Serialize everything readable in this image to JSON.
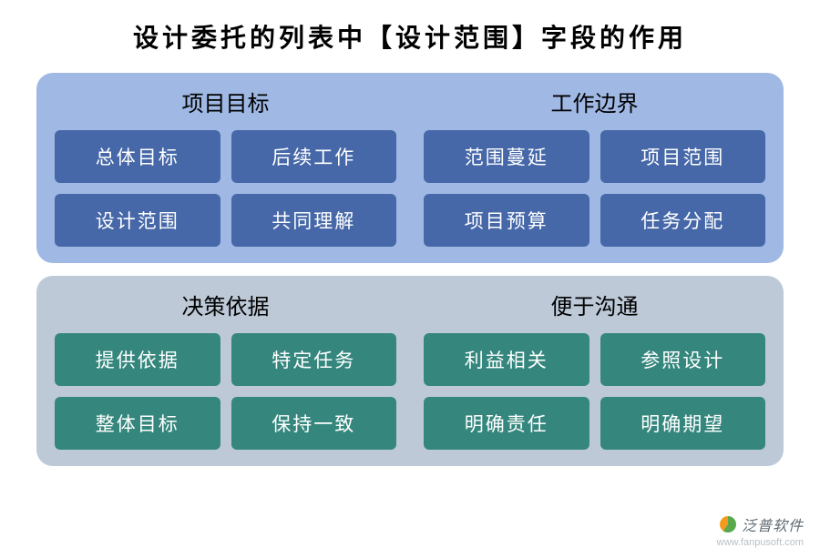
{
  "title": "设计委托的列表中【设计范围】字段的作用",
  "panels": [
    {
      "bg_color": "#9fb8e4",
      "card_bg": "#4668a8",
      "columns": [
        {
          "title": "项目目标",
          "cards": [
            "总体目标",
            "后续工作",
            "设计范围",
            "共同理解"
          ]
        },
        {
          "title": "工作边界",
          "cards": [
            "范围蔓延",
            "项目范围",
            "项目预算",
            "任务分配"
          ]
        }
      ]
    },
    {
      "bg_color": "#bdc9d7",
      "card_bg": "#35877e",
      "columns": [
        {
          "title": "决策依据",
          "cards": [
            "提供依据",
            "特定任务",
            "整体目标",
            "保持一致"
          ]
        },
        {
          "title": "便于沟通",
          "cards": [
            "利益相关",
            "参照设计",
            "明确责任",
            "明确期望"
          ]
        }
      ]
    }
  ],
  "footer": {
    "brand": "泛普软件",
    "url": "www.fanpusoft.com"
  },
  "style": {
    "card_text_color": "#ffffff",
    "title_color": "#000000",
    "column_title_color": "#000000",
    "card_border_radius": 6,
    "panel_border_radius": 18,
    "title_fontsize": 28,
    "column_title_fontsize": 24,
    "card_fontsize": 21
  }
}
